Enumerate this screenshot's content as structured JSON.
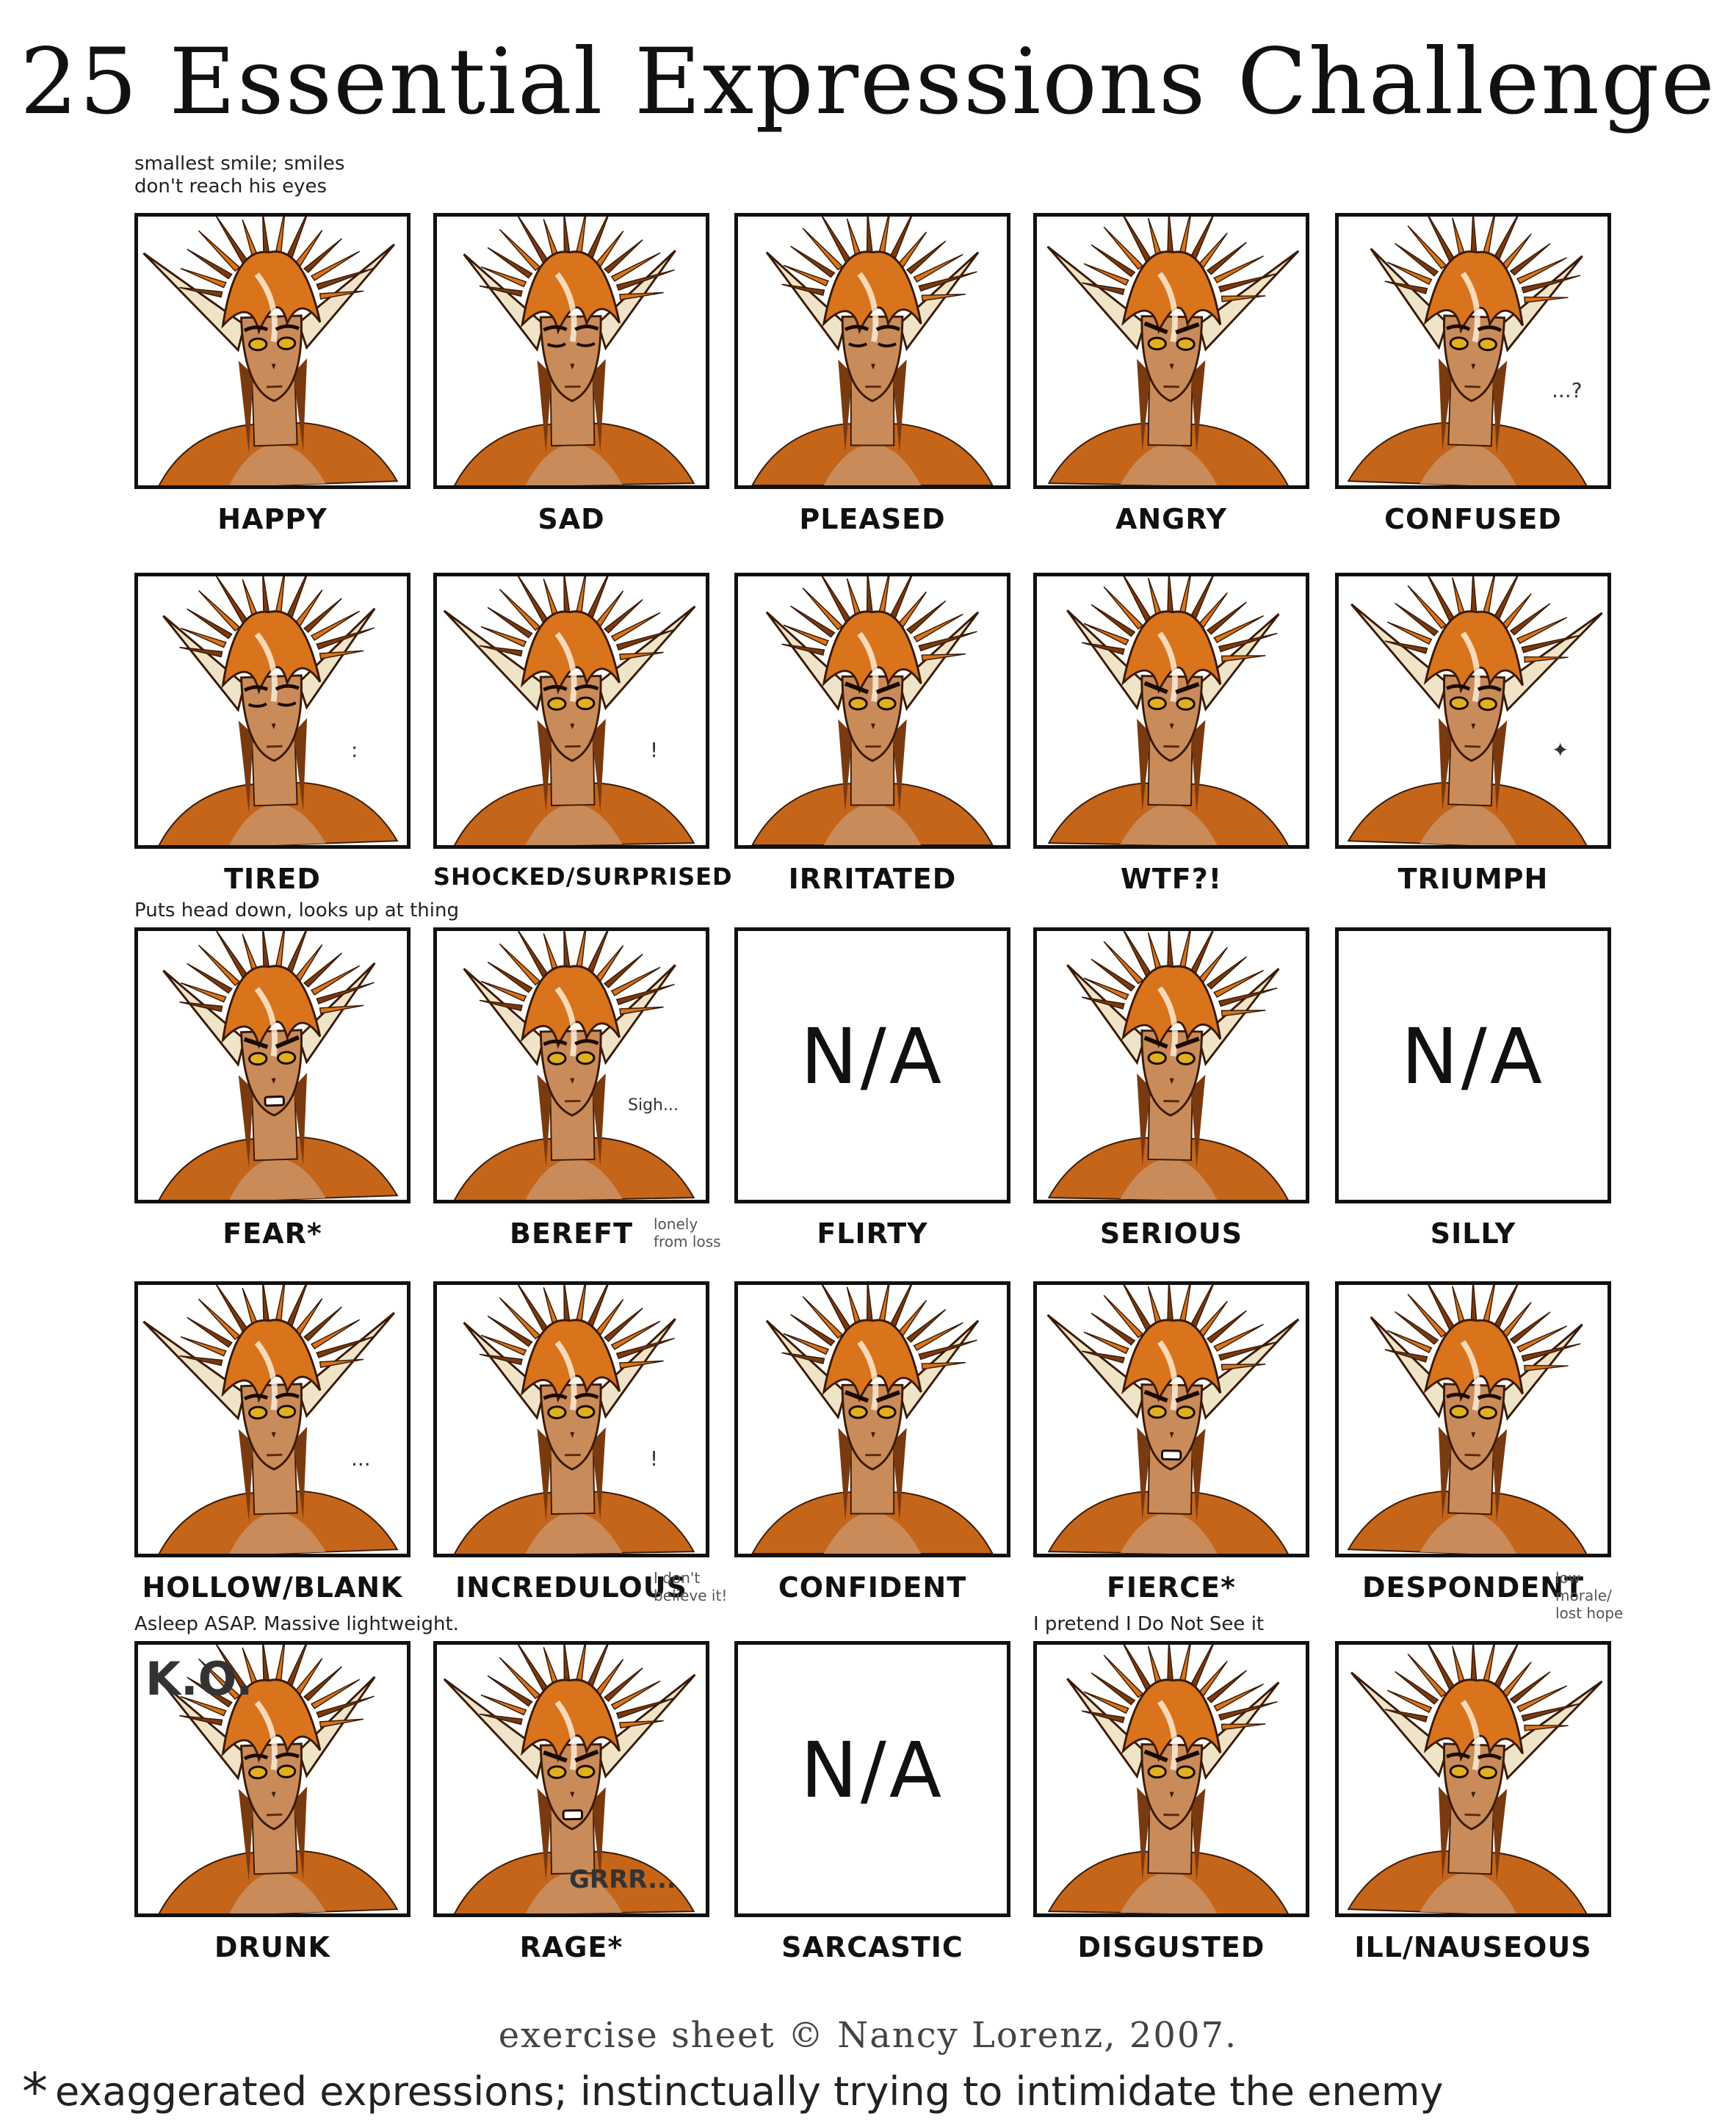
{
  "title": "25 Essential Expressions Challenge",
  "credit": "exercise sheet © Nancy Lorenz, 2007.",
  "footnote": {
    "star": "*",
    "text": "exaggerated expressions; instinctually trying to intimidate the enemy"
  },
  "colors": {
    "hair_orange": "#d9741c",
    "hair_brown": "#7a3a10",
    "skin": "#c98b5a",
    "fur": "#c5651a",
    "eye_gold": "#e0b020",
    "ear": "#efe3c8",
    "border": "#111111"
  },
  "cells": [
    {
      "label": "HAPPY",
      "note_above": "smallest smile; smiles don't reach his eyes"
    },
    {
      "label": "SAD"
    },
    {
      "label": "PLEASED"
    },
    {
      "label": "ANGRY"
    },
    {
      "label": "CONFUSED",
      "panel_note": "...?"
    },
    {
      "label": "TIRED",
      "panel_note": ":"
    },
    {
      "label": "SHOCKED/SURPRISED",
      "panel_note": "!"
    },
    {
      "label": "IRRITATED"
    },
    {
      "label": "WTF?!"
    },
    {
      "label": "TRIUMPH",
      "panel_note": "✦"
    },
    {
      "label": "FEAR*",
      "note_above": "Puts head down, looks up at thing"
    },
    {
      "label": "BEREFT",
      "note_side": "lonely from loss",
      "panel_note": "Sigh..."
    },
    {
      "label": "FLIRTY",
      "na": "N/A"
    },
    {
      "label": "SERIOUS"
    },
    {
      "label": "SILLY",
      "na": "N/A"
    },
    {
      "label": "HOLLOW/BLANK",
      "panel_note": "..."
    },
    {
      "label": "INCREDULOUS",
      "note_side": "I don't believe it!",
      "panel_note": "!"
    },
    {
      "label": "CONFIDENT"
    },
    {
      "label": "FIERCE*"
    },
    {
      "label": "DESPONDENT",
      "note_side": "low morale/ lost hope"
    },
    {
      "label": "DRUNK",
      "note_above": "Asleep ASAP. Massive lightweight.",
      "panel_note": "K.O."
    },
    {
      "label": "RAGE*",
      "panel_note": "GRRR..."
    },
    {
      "label": "SARCASTIC",
      "na": "N/A"
    },
    {
      "label": "DISGUSTED",
      "note_above": "I pretend I Do Not See it"
    },
    {
      "label": "ILL/NAUSEOUS"
    }
  ]
}
